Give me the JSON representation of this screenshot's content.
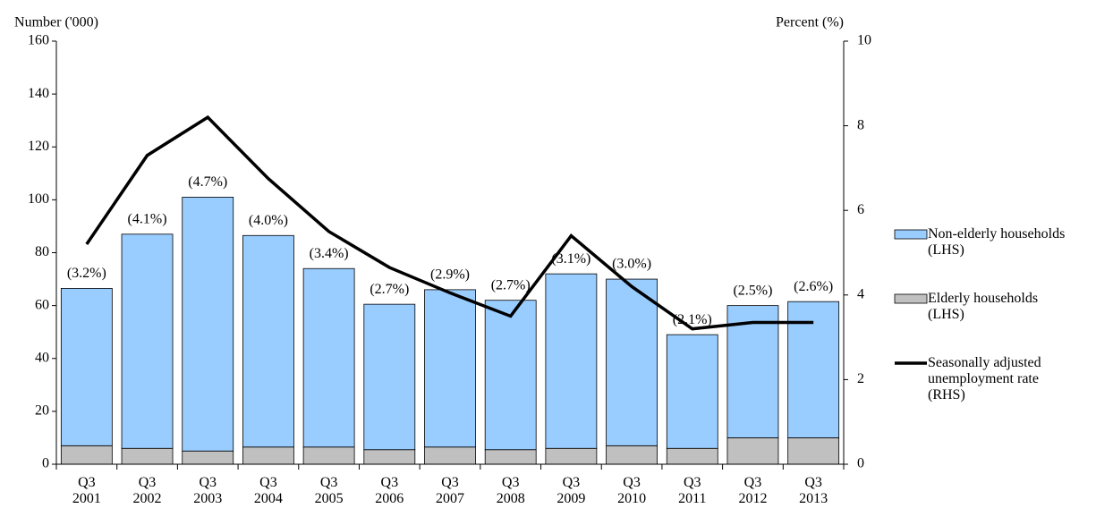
{
  "chart_data": {
    "type": "bar",
    "y_label": "Number ('000)",
    "y2_label": "Percent (%)",
    "categories": [
      "Q3 2001",
      "Q3 2002",
      "Q3 2003",
      "Q3 2004",
      "Q3 2005",
      "Q3 2006",
      "Q3 2007",
      "Q3 2008",
      "Q3 2009",
      "Q3 2010",
      "Q3 2011",
      "Q3 2012",
      "Q3 2013"
    ],
    "series": [
      {
        "name": "Non-elderly households (LHS)",
        "color": "#99ccff",
        "type": "bar",
        "values": [
          59.5,
          81,
          96,
          80,
          67.5,
          55,
          59.5,
          56.5,
          66,
          63,
          43,
          50,
          51.5
        ]
      },
      {
        "name": "Elderly households (LHS)",
        "color": "#c0c0c0",
        "type": "bar",
        "values": [
          7,
          6,
          5,
          6.5,
          6.5,
          5.5,
          6.5,
          5.5,
          6,
          7,
          6,
          10,
          10
        ]
      },
      {
        "name": "Seasonally adjusted unemployment rate (RHS)",
        "color": "#000000",
        "type": "line",
        "axis": "y2",
        "values": [
          5.2,
          7.3,
          8.2,
          6.75,
          5.5,
          4.65,
          4.05,
          3.5,
          5.4,
          4.2,
          3.2,
          3.35,
          3.35
        ]
      }
    ],
    "bar_labels": [
      "(3.2%)",
      "(4.1%)",
      "(4.7%)",
      "(4.0%)",
      "(3.4%)",
      "(2.7%)",
      "(2.9%)",
      "(2.7%)",
      "(3.1%)",
      "(3.0%)",
      "(2.1%)",
      "(2.5%)",
      "(2.6%)"
    ],
    "ylim": [
      0,
      160
    ],
    "yticks": [
      0,
      20,
      40,
      60,
      80,
      100,
      120,
      140,
      160
    ],
    "y2lim": [
      0,
      10
    ],
    "y2ticks": [
      0,
      2,
      4,
      6,
      8,
      10
    ],
    "stacked": true,
    "legend": "right"
  }
}
